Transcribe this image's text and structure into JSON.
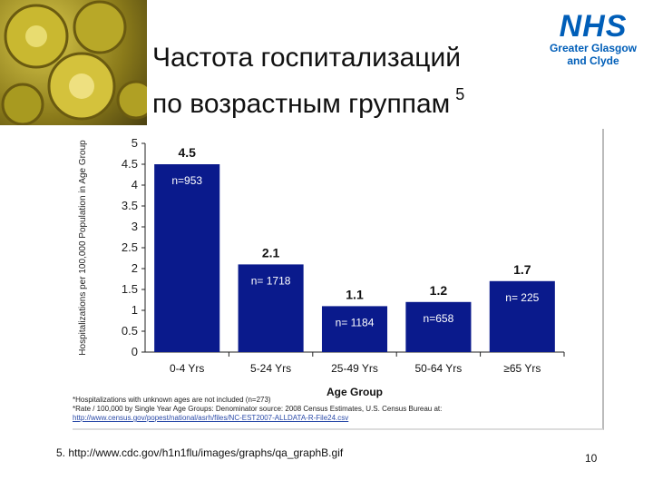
{
  "slide": {
    "title_line1": "Частота госпитализаций",
    "title_line2": "по возрастным группам",
    "title_ref": "5",
    "nhs_logo": "NHS",
    "nhs_org_line1": "Greater Glasgow",
    "nhs_org_line2": "and Clyde",
    "source": "5. http://www.cdc.gov/h1n1flu/images/graphs/qa_graphB.gif",
    "page_number": "10",
    "footnote1": "*Hospitalizations with unknown ages are not included (n=273)",
    "footnote2": "*Rate / 100,000 by Single Year Age Groups: Denominator source: 2008 Census Estimates, U.S. Census Bureau at:",
    "footnote_link": "http://www.census.gov/popest/national/asrh/files/NC-EST2007-ALLDATA-R-File24.csv"
  },
  "chart_data": {
    "type": "bar",
    "categories": [
      "0-4 Yrs",
      "5-24 Yrs",
      "25-49 Yrs",
      "50-64 Yrs",
      "≥65 Yrs"
    ],
    "values": [
      4.5,
      2.1,
      1.1,
      1.2,
      1.7
    ],
    "value_labels": [
      "4.5",
      "2.1",
      "1.1",
      "1.2",
      "1.7"
    ],
    "n_labels": [
      "n=953",
      "n= 1718",
      "n= 1184",
      "n=658",
      "n= 225"
    ],
    "xlabel": "Age Group",
    "ylabel": "Hospitalizations per 100,000 Population in Age Group",
    "ylim": [
      0,
      5
    ],
    "yticks": [
      "0",
      "0.5",
      "1",
      "1.5",
      "2",
      "2.5",
      "3",
      "3.5",
      "4",
      "4.5",
      "5"
    ],
    "bar_color": "#0a1a8c",
    "grid": false
  }
}
